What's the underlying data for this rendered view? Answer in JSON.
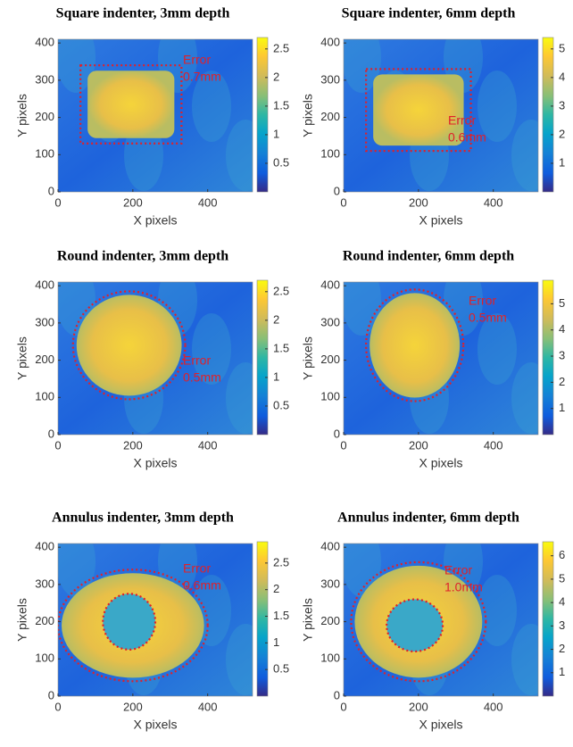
{
  "chart_data": [
    {
      "type": "heatmap",
      "title": "Square indenter, 3mm depth",
      "xlabel": "X pixels",
      "ylabel": "Y pixels",
      "xlim": [
        0,
        520
      ],
      "xticks": [
        0,
        200,
        400
      ],
      "ylim": [
        0,
        410
      ],
      "yticks": [
        0,
        100,
        200,
        300,
        400
      ],
      "clim": [
        0,
        2.7
      ],
      "cticks": [
        0.5,
        1,
        1.5,
        2,
        2.5
      ],
      "annotation": [
        "Error",
        "0.7mm"
      ]
    },
    {
      "type": "heatmap",
      "title": "Square indenter, 6mm depth",
      "xlabel": "X pixels",
      "ylabel": "Y pixels",
      "xlim": [
        0,
        520
      ],
      "xticks": [
        0,
        200,
        400
      ],
      "ylim": [
        0,
        410
      ],
      "yticks": [
        0,
        100,
        200,
        300,
        400
      ],
      "clim": [
        0,
        5.4
      ],
      "cticks": [
        1,
        2,
        3,
        4,
        5
      ],
      "annotation": [
        "Error",
        "0.6mm"
      ]
    },
    {
      "type": "heatmap",
      "title": "Round indenter, 3mm depth",
      "xlabel": "X pixels",
      "ylabel": "Y pixels",
      "xlim": [
        0,
        520
      ],
      "xticks": [
        0,
        200,
        400
      ],
      "ylim": [
        0,
        410
      ],
      "yticks": [
        0,
        100,
        200,
        300,
        400
      ],
      "clim": [
        0,
        2.7
      ],
      "cticks": [
        0.5,
        1,
        1.5,
        2,
        2.5
      ],
      "annotation": [
        "Error",
        "0.5mm"
      ]
    },
    {
      "type": "heatmap",
      "title": "Round indenter, 6mm depth",
      "xlabel": "X pixels",
      "ylabel": "Y pixels",
      "xlim": [
        0,
        520
      ],
      "xticks": [
        0,
        200,
        400
      ],
      "ylim": [
        0,
        410
      ],
      "yticks": [
        0,
        100,
        200,
        300,
        400
      ],
      "clim": [
        0,
        5.9
      ],
      "cticks": [
        1,
        2,
        3,
        4,
        5
      ],
      "annotation": [
        "Error",
        "0.5mm"
      ]
    },
    {
      "type": "heatmap",
      "title": "Annulus indenter, 3mm depth",
      "xlabel": "X pixels",
      "ylabel": "Y pixels",
      "xlim": [
        0,
        520
      ],
      "xticks": [
        0,
        200,
        400
      ],
      "ylim": [
        0,
        410
      ],
      "yticks": [
        0,
        100,
        200,
        300,
        400
      ],
      "clim": [
        0,
        2.9
      ],
      "cticks": [
        0.5,
        1,
        1.5,
        2,
        2.5
      ],
      "annotation": [
        "Error",
        "0.6mm"
      ]
    },
    {
      "type": "heatmap",
      "title": "Annulus indenter, 6mm depth",
      "xlabel": "X pixels",
      "ylabel": "Y pixels",
      "xlim": [
        0,
        520
      ],
      "xticks": [
        0,
        200,
        400
      ],
      "ylim": [
        0,
        410
      ],
      "yticks": [
        0,
        100,
        200,
        300,
        400
      ],
      "clim": [
        0,
        6.6
      ],
      "cticks": [
        1,
        2,
        3,
        4,
        5,
        6
      ],
      "annotation": [
        "Error",
        "1.0mm"
      ]
    }
  ]
}
